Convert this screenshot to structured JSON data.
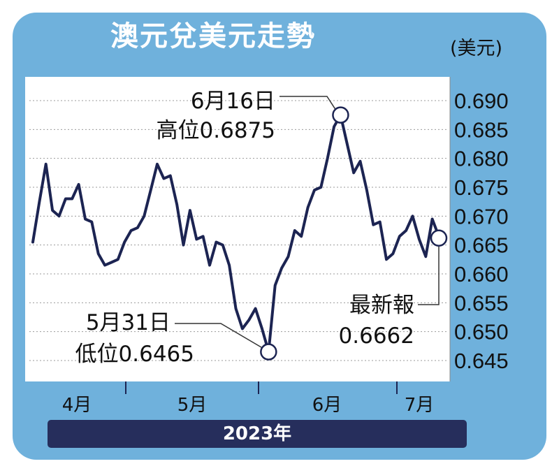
{
  "header": {
    "title": "澳元兌美元走勢",
    "unit": "(美元)"
  },
  "footer": {
    "year": "2023年"
  },
  "annotations": {
    "high_date": "6月16日",
    "high_label": "高位0.6875",
    "low_date": "5月31日",
    "low_label": "低位0.6465",
    "latest_title": "最新報",
    "latest_value": "0.6662"
  },
  "colors": {
    "line": "#1c2452",
    "panel": "#6fb1dc",
    "year_bar": "#262e5c"
  },
  "chart_data": {
    "type": "line",
    "title": "澳元兌美元走勢",
    "ylabel": "(美元)",
    "ylim": [
      0.643,
      0.693
    ],
    "yticks": [
      "0.690",
      "0.685",
      "0.680",
      "0.675",
      "0.670",
      "0.665",
      "0.660",
      "0.655",
      "0.650",
      "0.645"
    ],
    "month_labels": [
      "4月",
      "5月",
      "6月",
      "7月"
    ],
    "grid": true,
    "values": [
      0.6655,
      0.6725,
      0.679,
      0.671,
      0.67,
      0.673,
      0.673,
      0.6755,
      0.6695,
      0.669,
      0.6635,
      0.6615,
      0.662,
      0.6625,
      0.6655,
      0.6675,
      0.668,
      0.67,
      0.6745,
      0.679,
      0.6765,
      0.677,
      0.672,
      0.665,
      0.671,
      0.666,
      0.6665,
      0.6615,
      0.6655,
      0.665,
      0.6615,
      0.654,
      0.6505,
      0.652,
      0.654,
      0.6505,
      0.6465,
      0.658,
      0.661,
      0.663,
      0.6675,
      0.6665,
      0.6715,
      0.6745,
      0.675,
      0.68,
      0.6855,
      0.6875,
      0.6825,
      0.6775,
      0.6795,
      0.6745,
      0.6685,
      0.669,
      0.6625,
      0.6635,
      0.6665,
      0.6675,
      0.67,
      0.666,
      0.663,
      0.6695,
      0.6665
    ],
    "high": {
      "index": 47,
      "value": 0.6875
    },
    "low": {
      "index": 36,
      "value": 0.6465
    },
    "latest": {
      "index": 62,
      "value": 0.6662
    }
  }
}
